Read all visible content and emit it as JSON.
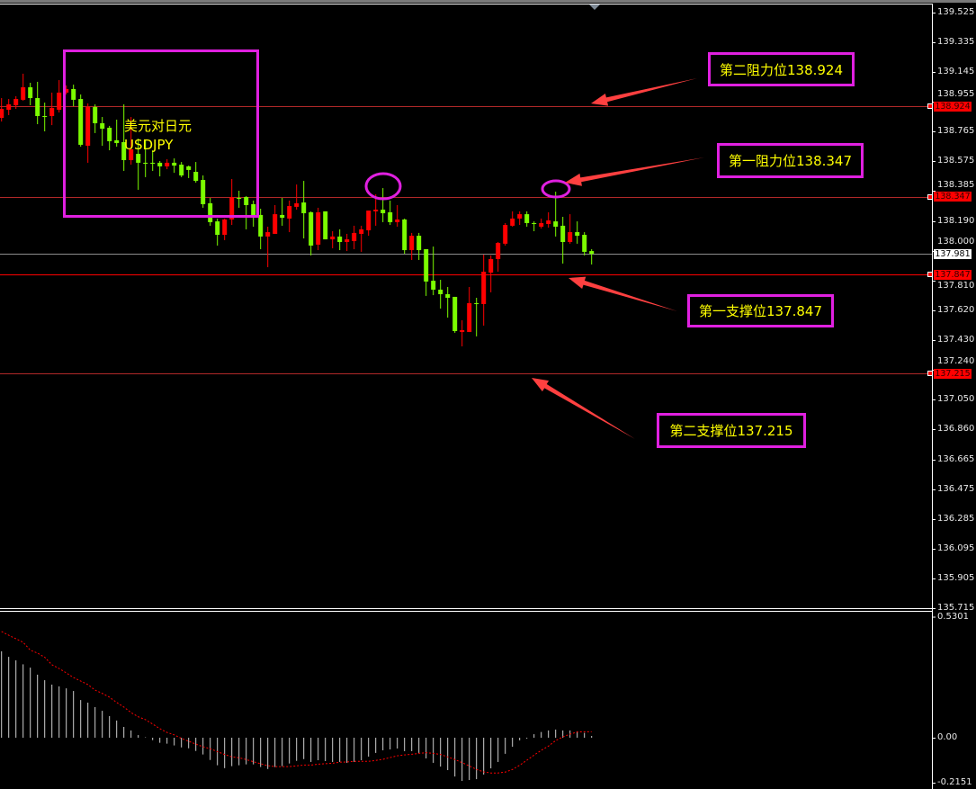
{
  "symbol": {
    "name_cn": "美元对日元",
    "name_en": "USDJPY"
  },
  "colors": {
    "up": "#ff0000",
    "down": "#7cfc00",
    "level_line": "#b02828",
    "support1_line": "#ff0000",
    "current_line": "#8c8c8c",
    "annotation_border": "#e020e0",
    "annotation_text": "#ffff00",
    "arrow": "#ff4040",
    "macd_hist": "#d0d0d0",
    "macd_signal": "#ff0000"
  },
  "annotations": [
    {
      "label": "第二阻力位138.924",
      "price": 138.924
    },
    {
      "label": "第一阻力位138.347",
      "price": 138.347
    },
    {
      "label": "第一支撑位137.847",
      "price": 137.847
    },
    {
      "label": "第二支撑位137.215",
      "price": 137.215
    }
  ],
  "price_axis": {
    "ticks": [
      "139.525",
      "139.335",
      "139.145",
      "138.955",
      "138.765",
      "138.575",
      "138.385",
      "138.190",
      "138.000",
      "137.810",
      "137.620",
      "137.430",
      "137.240",
      "137.050",
      "136.860",
      "136.665",
      "136.475",
      "136.285",
      "136.095",
      "135.905",
      "135.715"
    ],
    "badges": [
      {
        "text": "138.924",
        "kind": "level"
      },
      {
        "text": "138.347",
        "kind": "level"
      },
      {
        "text": "137.981",
        "kind": "current"
      },
      {
        "text": "137.847",
        "kind": "level"
      },
      {
        "text": "137.215",
        "kind": "level"
      }
    ]
  },
  "macd_axis": {
    "ticks": [
      "0.5301",
      "0.00",
      "-0.2151"
    ]
  },
  "chart_data": [
    {
      "type": "candlestick",
      "symbol": "USDJPY",
      "ylim": [
        135.715,
        139.525
      ],
      "current_price": 137.981,
      "ohlc": [
        [
          138.851,
          138.978,
          138.828,
          138.909
        ],
        [
          138.903,
          138.972,
          138.869,
          138.938
        ],
        [
          138.932,
          138.99,
          138.909,
          138.972
        ],
        [
          138.967,
          139.134,
          138.961,
          139.047
        ],
        [
          139.047,
          139.076,
          138.932,
          138.978
        ],
        [
          138.978,
          139.082,
          138.811,
          138.863
        ],
        [
          138.863,
          138.949,
          138.765,
          138.857
        ],
        [
          138.863,
          139.013,
          138.805,
          138.915
        ],
        [
          138.903,
          139.093,
          138.886,
          139.013
        ],
        [
          139.013,
          139.059,
          139.001,
          139.036
        ],
        [
          139.036,
          139.064,
          138.926,
          138.967
        ],
        [
          138.972,
          139.001,
          138.667,
          138.679
        ],
        [
          138.673,
          138.944,
          138.564,
          138.921
        ],
        [
          138.921,
          138.938,
          138.754,
          138.817
        ],
        [
          138.817,
          138.857,
          138.673,
          138.782
        ],
        [
          138.788,
          138.8,
          138.644,
          138.702
        ],
        [
          138.708,
          138.84,
          138.667,
          138.69
        ],
        [
          138.696,
          138.938,
          138.512,
          138.581
        ],
        [
          138.581,
          138.857,
          138.552,
          138.65
        ],
        [
          138.621,
          138.719,
          138.391,
          138.564
        ],
        [
          138.564,
          138.713,
          138.472,
          138.558
        ],
        [
          138.564,
          138.644,
          138.512,
          138.558
        ],
        [
          138.564,
          138.575,
          138.477,
          138.541
        ],
        [
          138.541,
          138.587,
          138.523,
          138.564
        ],
        [
          138.564,
          138.592,
          138.5,
          138.546
        ],
        [
          138.552,
          138.569,
          138.472,
          138.483
        ],
        [
          138.541,
          138.546,
          138.466,
          138.518
        ],
        [
          138.506,
          138.569,
          138.437,
          138.448
        ],
        [
          138.454,
          138.483,
          138.276,
          138.299
        ],
        [
          138.305,
          138.339,
          138.161,
          138.184
        ],
        [
          138.189,
          138.207,
          138.034,
          138.103
        ],
        [
          138.103,
          138.207,
          138.069,
          138.201
        ],
        [
          138.201,
          138.46,
          138.166,
          138.345
        ],
        [
          138.339,
          138.385,
          138.276,
          138.333
        ],
        [
          138.345,
          138.351,
          138.138,
          138.293
        ],
        [
          138.299,
          138.322,
          138.155,
          138.224
        ],
        [
          138.23,
          138.27,
          138.011,
          138.092
        ],
        [
          138.092,
          138.155,
          137.896,
          138.12
        ],
        [
          138.109,
          138.293,
          138.109,
          138.235
        ],
        [
          138.23,
          138.339,
          138.161,
          138.212
        ],
        [
          138.207,
          138.322,
          138.12,
          138.287
        ],
        [
          138.282,
          138.425,
          138.264,
          138.305
        ],
        [
          138.31,
          138.448,
          138.08,
          138.241
        ],
        [
          138.247,
          138.253,
          137.971,
          138.034
        ],
        [
          138.04,
          138.276,
          138.005,
          138.247
        ],
        [
          138.253,
          138.253,
          138.074,
          138.074
        ],
        [
          138.074,
          138.126,
          138.017,
          138.092
        ],
        [
          138.092,
          138.138,
          138.005,
          138.057
        ],
        [
          138.057,
          138.109,
          137.999,
          138.074
        ],
        [
          138.063,
          138.161,
          138.011,
          138.115
        ],
        [
          138.109,
          138.161,
          137.994,
          138.138
        ],
        [
          138.132,
          138.258,
          138.097,
          138.258
        ],
        [
          138.253,
          138.362,
          138.161,
          138.264
        ],
        [
          138.264,
          138.402,
          138.184,
          138.241
        ],
        [
          138.247,
          138.322,
          138.166,
          138.184
        ],
        [
          138.184,
          138.293,
          138.155,
          138.201
        ],
        [
          138.201,
          138.207,
          137.982,
          138.005
        ],
        [
          138.005,
          138.115,
          137.942,
          138.097
        ],
        [
          138.097,
          138.115,
          137.942,
          138.005
        ],
        [
          138.011,
          138.011,
          137.712,
          137.804
        ],
        [
          137.809,
          138.028,
          137.717,
          137.752
        ],
        [
          137.752,
          137.815,
          137.631,
          137.723
        ],
        [
          137.723,
          137.769,
          137.573,
          137.7
        ],
        [
          137.706,
          137.706,
          137.476,
          137.487
        ],
        [
          137.481,
          137.556,
          137.389,
          137.493
        ],
        [
          137.481,
          137.769,
          137.481,
          137.666
        ],
        [
          137.666,
          137.7,
          137.453,
          137.66
        ],
        [
          137.66,
          137.976,
          137.522,
          137.867
        ],
        [
          137.861,
          137.971,
          137.735,
          137.948
        ],
        [
          137.948,
          138.057,
          137.867,
          138.051
        ],
        [
          138.046,
          138.178,
          138.034,
          138.166
        ],
        [
          138.161,
          138.253,
          138.155,
          138.207
        ],
        [
          138.207,
          138.253,
          138.166,
          138.235
        ],
        [
          138.235,
          138.253,
          138.155,
          138.178
        ],
        [
          138.178,
          138.189,
          138.126,
          138.172
        ],
        [
          138.155,
          138.207,
          138.143,
          138.178
        ],
        [
          138.172,
          138.247,
          138.149,
          138.195
        ],
        [
          138.189,
          138.379,
          138.092,
          138.155
        ],
        [
          138.161,
          138.218,
          137.919,
          138.057
        ],
        [
          138.057,
          138.235,
          138.046,
          138.12
        ],
        [
          138.12,
          138.189,
          138.046,
          138.097
        ],
        [
          138.103,
          138.12,
          137.971,
          137.994
        ],
        [
          137.999,
          138.011,
          137.913,
          137.981
        ]
      ],
      "horizontal_levels": [
        138.924,
        138.347,
        137.847,
        137.215
      ]
    },
    {
      "type": "bar",
      "ylim": [
        -0.2151,
        0.5301
      ],
      "histogram": [
        0.392,
        0.367,
        0.351,
        0.333,
        0.318,
        0.286,
        0.261,
        0.241,
        0.233,
        0.224,
        0.212,
        0.171,
        0.159,
        0.139,
        0.122,
        0.098,
        0.078,
        0.049,
        0.033,
        0.012,
        0.002,
        -0.011,
        -0.023,
        -0.027,
        -0.035,
        -0.044,
        -0.048,
        -0.06,
        -0.076,
        -0.101,
        -0.125,
        -0.138,
        -0.129,
        -0.125,
        -0.121,
        -0.121,
        -0.133,
        -0.142,
        -0.133,
        -0.129,
        -0.117,
        -0.105,
        -0.097,
        -0.11,
        -0.102,
        -0.106,
        -0.11,
        -0.11,
        -0.114,
        -0.11,
        -0.102,
        -0.086,
        -0.069,
        -0.057,
        -0.053,
        -0.049,
        -0.061,
        -0.061,
        -0.069,
        -0.094,
        -0.114,
        -0.131,
        -0.147,
        -0.176,
        -0.196,
        -0.192,
        -0.188,
        -0.167,
        -0.139,
        -0.11,
        -0.073,
        -0.041,
        -0.012,
        -0.004,
        0.016,
        0.026,
        0.033,
        0.037,
        0.033,
        0.033,
        0.029,
        0.022,
        0.008
      ],
      "signal": [
        0.482,
        0.465,
        0.449,
        0.433,
        0.397,
        0.384,
        0.365,
        0.331,
        0.314,
        0.294,
        0.273,
        0.257,
        0.241,
        0.216,
        0.201,
        0.184,
        0.16,
        0.139,
        0.114,
        0.095,
        0.082,
        0.062,
        0.041,
        0.024,
        0.013,
        -0.003,
        -0.016,
        -0.029,
        -0.041,
        -0.05,
        -0.063,
        -0.076,
        -0.087,
        -0.091,
        -0.099,
        -0.109,
        -0.118,
        -0.127,
        -0.131,
        -0.131,
        -0.131,
        -0.128,
        -0.124,
        -0.124,
        -0.12,
        -0.118,
        -0.116,
        -0.111,
        -0.11,
        -0.107,
        -0.107,
        -0.107,
        -0.103,
        -0.098,
        -0.09,
        -0.082,
        -0.078,
        -0.075,
        -0.071,
        -0.068,
        -0.071,
        -0.076,
        -0.087,
        -0.099,
        -0.113,
        -0.128,
        -0.144,
        -0.155,
        -0.16,
        -0.16,
        -0.156,
        -0.144,
        -0.125,
        -0.102,
        -0.079,
        -0.057,
        -0.038,
        -0.013,
        0.004,
        0.016,
        0.026,
        0.027,
        0.027
      ]
    }
  ]
}
